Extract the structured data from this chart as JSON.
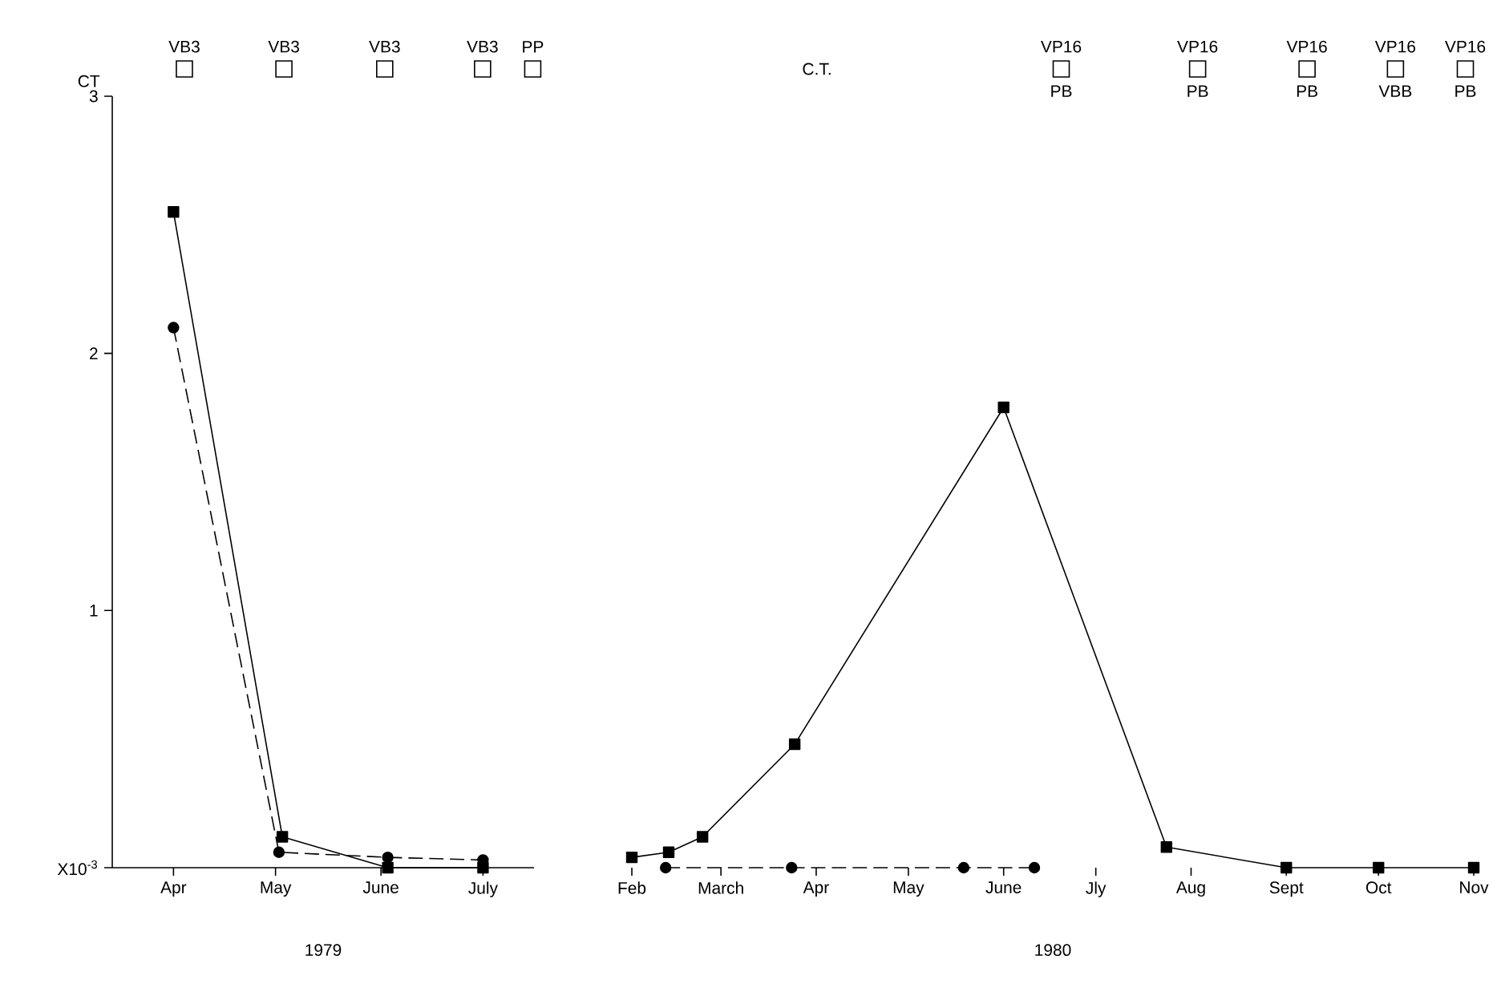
{
  "chart_data": [
    {
      "type": "line",
      "xlabel": "1979",
      "ylabel": "CT",
      "xlim": [
        "1979-03-14",
        "1979-07-16"
      ],
      "xticks": [
        {
          "value": "1979-04-01",
          "label": "Apr"
        },
        {
          "value": "1979-05-01",
          "label": "May"
        },
        {
          "value": "1979-06-01",
          "label": "June"
        },
        {
          "value": "1979-07-01",
          "label": "July"
        }
      ],
      "ylim": [
        0,
        3
      ],
      "yticks": [
        {
          "value": 0,
          "label": "X10$^{-3}$"
        },
        1,
        2,
        3
      ],
      "grid": false,
      "series": [
        {
          "color": "#000000",
          "marker": "square",
          "line_style": "solid",
          "x": [
            "1979-04-01",
            "1979-05-03",
            "1979-06-03",
            "1979-07-01"
          ],
          "values": [
            2.55,
            0.12,
            0,
            0
          ]
        },
        {
          "color": "#000000",
          "marker": "circle",
          "line_style": "dashed",
          "x": [
            "1979-04-01",
            "1979-05-02",
            "1979-06-03",
            "1979-07-01"
          ],
          "values": [
            2.1,
            0.06,
            0.04,
            0.03
          ]
        }
      ],
      "annotations": [
        "VB3",
        "VB3",
        "VB3",
        "VB3",
        "PP"
      ]
    },
    {
      "type": "line",
      "xlabel": "1980",
      "xlim": [
        "1980-02-01",
        "1980-11-01"
      ],
      "xticks": [
        {
          "value": "1980-02-01",
          "label": "Feb"
        },
        {
          "value": "1980-03-01",
          "label": "March"
        },
        {
          "value": "1980-04-01",
          "label": "Apr"
        },
        {
          "value": "1980-05-01",
          "label": "May"
        },
        {
          "value": "1980-06-01",
          "label": "June"
        },
        {
          "value": "1980-07-01",
          "label": "Jly"
        },
        {
          "value": "1980-08-01",
          "label": "Aug"
        },
        {
          "value": "1980-09-01",
          "label": "Sept"
        },
        {
          "value": "1980-10-01",
          "label": "Oct"
        },
        {
          "value": "1980-11-01",
          "label": "Nov"
        }
      ],
      "ylim": [
        0,
        3
      ],
      "yticks": [
        0,
        1,
        2,
        3
      ],
      "tick_labels": "x",
      "grid": false,
      "series": [
        {
          "color": "#000000",
          "marker": "square",
          "line_style": "solid",
          "x": [
            "1980-02-01",
            "1980-02-13",
            "1980-02-24",
            "1980-03-25",
            "1980-06-01",
            "1980-07-24",
            "1980-09-01",
            "1980-10-01",
            "1980-11-01"
          ],
          "values": [
            0.04,
            0.06,
            0.12,
            0.48,
            1.79,
            0.08,
            0,
            0,
            0
          ]
        },
        {
          "color": "#000000",
          "marker": "circle",
          "line_style": "dashed",
          "x": [
            "1980-02-12",
            "1980-03-24",
            "1980-05-19",
            "1980-06-11"
          ],
          "values": [
            0,
            0,
            0,
            0
          ]
        }
      ],
      "annotations": [
        "C.T.",
        "VP16",
        "PB",
        "VP16",
        "PB",
        "VP16",
        "PB",
        "VP16",
        "VBB",
        "VP16",
        "PB"
      ]
    }
  ]
}
